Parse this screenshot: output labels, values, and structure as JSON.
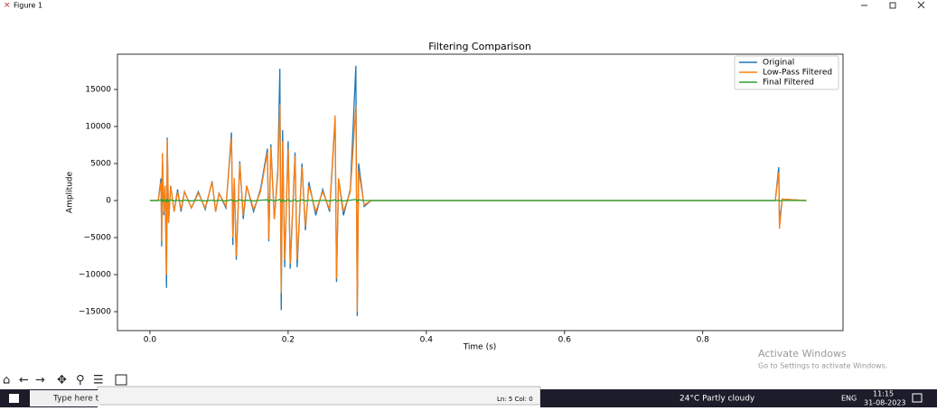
{
  "window": {
    "title": "Figure 1"
  },
  "chart_data": {
    "type": "line",
    "title": "Filtering Comparison",
    "x_label": "Time (s)",
    "y_label": "Amplitude",
    "x": [
      0.0,
      0.012,
      0.016,
      0.017,
      0.018,
      0.02,
      0.022,
      0.024,
      0.025,
      0.027,
      0.03,
      0.035,
      0.04,
      0.045,
      0.05,
      0.06,
      0.07,
      0.08,
      0.09,
      0.095,
      0.1,
      0.11,
      0.118,
      0.12,
      0.122,
      0.125,
      0.13,
      0.135,
      0.14,
      0.15,
      0.16,
      0.17,
      0.172,
      0.175,
      0.18,
      0.185,
      0.188,
      0.19,
      0.192,
      0.195,
      0.2,
      0.203,
      0.21,
      0.213,
      0.22,
      0.225,
      0.23,
      0.24,
      0.25,
      0.26,
      0.268,
      0.27,
      0.273,
      0.28,
      0.29,
      0.298,
      0.3,
      0.302,
      0.31,
      0.32,
      0.905,
      0.91,
      0.911,
      0.915,
      0.95
    ],
    "series": [
      {
        "name": "Original",
        "color": "#1f77b4",
        "values": [
          0,
          0,
          3000,
          -6200,
          6300,
          -2000,
          2000,
          -11800,
          8500,
          -3000,
          2000,
          -1500,
          1500,
          -1500,
          1200,
          -1000,
          1200,
          -1200,
          2600,
          -1500,
          1000,
          -1000,
          9200,
          -6000,
          3000,
          -8000,
          5300,
          -2500,
          2000,
          -1500,
          1500,
          7000,
          -5500,
          7600,
          -2500,
          4000,
          17800,
          -14800,
          9500,
          -9000,
          8000,
          -9200,
          6500,
          -9000,
          5000,
          -4000,
          2500,
          -2000,
          1500,
          -1500,
          11000,
          -11000,
          3000,
          -2000,
          1500,
          18200,
          -15600,
          5000,
          -800,
          0,
          0,
          4500,
          -3000,
          200,
          0
        ]
      },
      {
        "name": "Low-Pass Filtered",
        "color": "#ff7f0e",
        "values": [
          0,
          0,
          2500,
          -5500,
          6400,
          -1500,
          2000,
          -10000,
          8200,
          -3000,
          2000,
          -1500,
          1200,
          -1200,
          1200,
          -1000,
          1000,
          -1000,
          2500,
          -1500,
          1000,
          -800,
          8500,
          -5000,
          3000,
          -7500,
          5000,
          -2000,
          2000,
          -1200,
          1200,
          6500,
          -5200,
          7200,
          -2500,
          3500,
          13000,
          -12500,
          8000,
          -8000,
          7000,
          -8500,
          6000,
          -8000,
          4500,
          -3500,
          2000,
          -1500,
          1200,
          -1200,
          11500,
          -10500,
          3000,
          -1500,
          1200,
          12800,
          -15000,
          4000,
          -600,
          0,
          0,
          3800,
          -3800,
          200,
          0
        ]
      },
      {
        "name": "Final Filtered",
        "color": "#2ca02c",
        "values": [
          0,
          0,
          100,
          -100,
          100,
          -100,
          100,
          -150,
          150,
          -100,
          100,
          -50,
          50,
          -50,
          50,
          -50,
          50,
          -50,
          50,
          -50,
          50,
          -50,
          100,
          -100,
          50,
          -100,
          100,
          -50,
          50,
          -50,
          50,
          100,
          -100,
          100,
          -50,
          50,
          150,
          -150,
          100,
          -100,
          100,
          -100,
          100,
          -100,
          100,
          -50,
          50,
          -50,
          50,
          -50,
          100,
          -100,
          50,
          -50,
          50,
          150,
          -150,
          100,
          0,
          0,
          0,
          50,
          -50,
          0,
          0
        ]
      }
    ],
    "xlim": [
      -0.047,
      1.003
    ],
    "xticks": [
      {
        "value": 0,
        "label": "0.0"
      },
      0.2,
      0.4,
      0.6,
      0.8
    ],
    "ylim": [
      -17560,
      19760
    ],
    "yticks": [
      {
        "value": -15000,
        "label": "−15000"
      },
      {
        "value": -10000,
        "label": "−10000"
      },
      {
        "value": -5000,
        "label": "−5000"
      },
      0,
      5000,
      10000,
      15000
    ],
    "legend": "upper right"
  },
  "watermark": {
    "title": "Activate Windows",
    "subtitle": "Go to Settings to activate Windows."
  },
  "editor": {
    "status": "Ln: 5   Col: 0"
  },
  "taskbar": {
    "search": "Type here t",
    "weather": "24°C  Partly cloudy",
    "language": "ENG",
    "time": "11:15",
    "date": "31-08-2023"
  }
}
